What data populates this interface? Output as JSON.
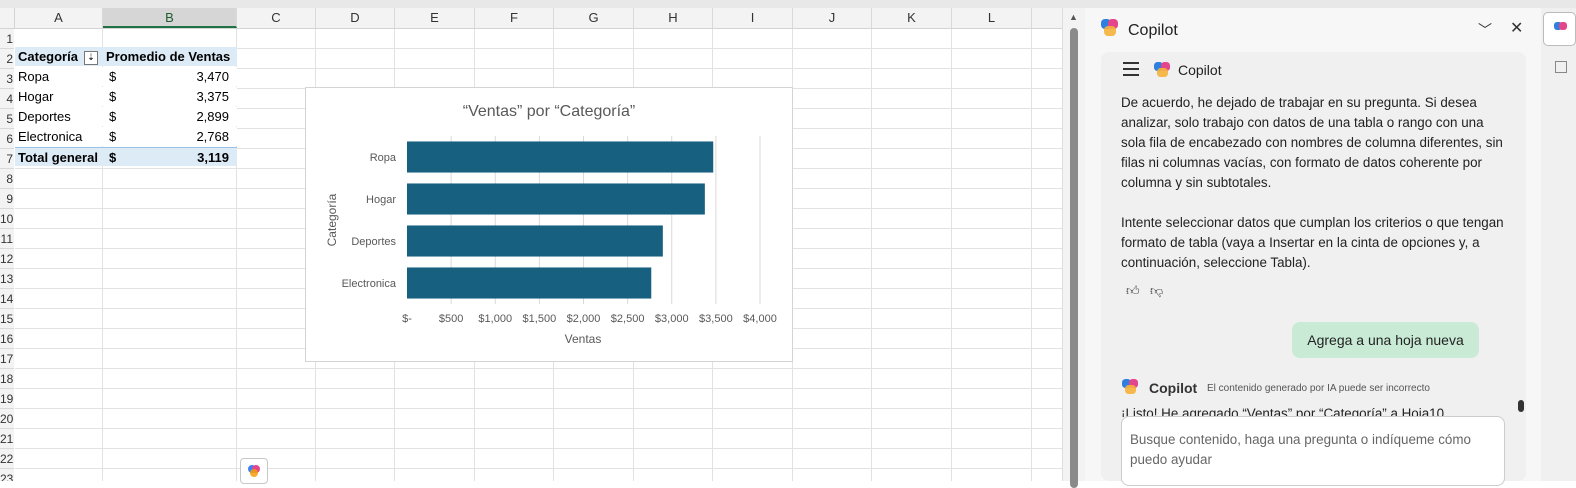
{
  "columns": [
    "A",
    "B",
    "C",
    "D",
    "E",
    "F",
    "G",
    "H",
    "I",
    "J",
    "K",
    "L"
  ],
  "rows": [
    "1",
    "2",
    "3",
    "4",
    "5",
    "6",
    "7",
    "8",
    "9",
    "10",
    "11",
    "12",
    "13",
    "14",
    "15",
    "16",
    "17",
    "18",
    "19",
    "20",
    "21",
    "22",
    "23"
  ],
  "pivot": {
    "header_category": "Categoría",
    "header_avg": "Promedio de Ventas",
    "filter_icon": "sort-filter-icon",
    "rows": [
      {
        "cat": "Ropa",
        "cur": "$",
        "val": "3,470"
      },
      {
        "cat": "Hogar",
        "cur": "$",
        "val": "3,375"
      },
      {
        "cat": "Deportes",
        "cur": "$",
        "val": "2,899"
      },
      {
        "cat": "Electronica",
        "cur": "$",
        "val": "2,768"
      }
    ],
    "total": {
      "cat": "Total general",
      "cur": "$",
      "val": "3,119"
    }
  },
  "chart_data": {
    "type": "bar",
    "orientation": "horizontal",
    "title": "“Ventas” por “Categoría”",
    "xlabel": "Ventas",
    "ylabel": "Categoría",
    "categories": [
      "Ropa",
      "Hogar",
      "Deportes",
      "Electronica"
    ],
    "values": [
      3470,
      3375,
      2899,
      2768
    ],
    "xlim": [
      0,
      4000
    ],
    "x_ticks": [
      0,
      500,
      1000,
      1500,
      2000,
      2500,
      3000,
      3500,
      4000
    ],
    "x_tick_labels": [
      "$-",
      "$500",
      "$1,000",
      "$1,500",
      "$2,000",
      "$2,500",
      "$3,000",
      "$3,500",
      "$4,000"
    ],
    "bar_color": "#17607f",
    "grid": true,
    "legend": "none"
  },
  "copilot": {
    "pane_title": "Copilot",
    "chat_header": "Copilot",
    "message_paragraphs": [
      "De acuerdo, he dejado de trabajar en su pregunta. Si desea analizar, solo trabajo con datos de una tabla o rango con una sola fila de encabezado con nombres de columna diferentes, sin filas ni columnas vacías, con formato de datos coherente por columna y sin subtotales.",
      "Intente seleccionar datos que cumplan los criterios o que tengan formato de tabla (vaya a Insertar en la cinta de opciones y, a continuación, seleccione Tabla)."
    ],
    "user_message": "Agrega a una hoja nueva",
    "response_name": "Copilot",
    "disclaimer": "El contenido generado por IA puede ser incorrecto",
    "response_text": "¡Listo! He agregado “Ventas” por “Categoría” a Hoja10",
    "input_placeholder": "Busque contenido, haga una pregunta o indíqueme cómo puedo ayudar",
    "user_bubble_color": "#c9ebd6"
  }
}
